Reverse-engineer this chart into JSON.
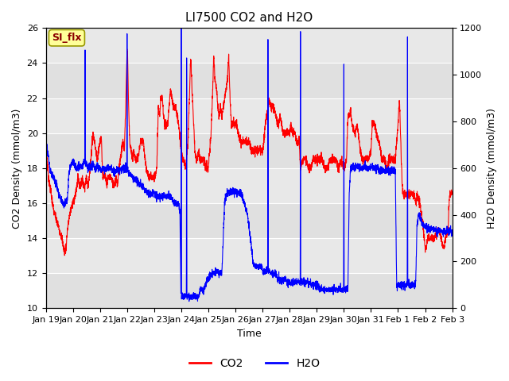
{
  "title": "LI7500 CO2 and H2O",
  "xlabel": "Time",
  "ylabel_left": "CO2 Density (mmol/m3)",
  "ylabel_right": "H2O Density (mmol/m3)",
  "annotation": "SI_flx",
  "co2_ylim": [
    10,
    26
  ],
  "h2o_ylim": [
    0,
    1200
  ],
  "co2_yticks": [
    10,
    12,
    14,
    16,
    18,
    20,
    22,
    24,
    26
  ],
  "h2o_yticks": [
    0,
    200,
    400,
    600,
    800,
    1000,
    1200
  ],
  "xtick_labels": [
    "Jan 19",
    "Jan 20",
    "Jan 21",
    "Jan 22",
    "Jan 23",
    "Jan 24",
    "Jan 25",
    "Jan 26",
    "Jan 27",
    "Jan 28",
    "Jan 29",
    "Jan 30",
    "Jan 31",
    "Feb 1",
    "Feb 2",
    "Feb 3"
  ],
  "co2_color": "#FF0000",
  "h2o_color": "#0000FF",
  "bg_color": "#E8E8E8",
  "annotation_bg": "#FFFF99",
  "annotation_border": "#999900",
  "legend_co2": "CO2",
  "legend_h2o": "H2O",
  "title_fontsize": 11,
  "axis_label_fontsize": 9,
  "tick_fontsize": 8,
  "legend_fontsize": 10
}
